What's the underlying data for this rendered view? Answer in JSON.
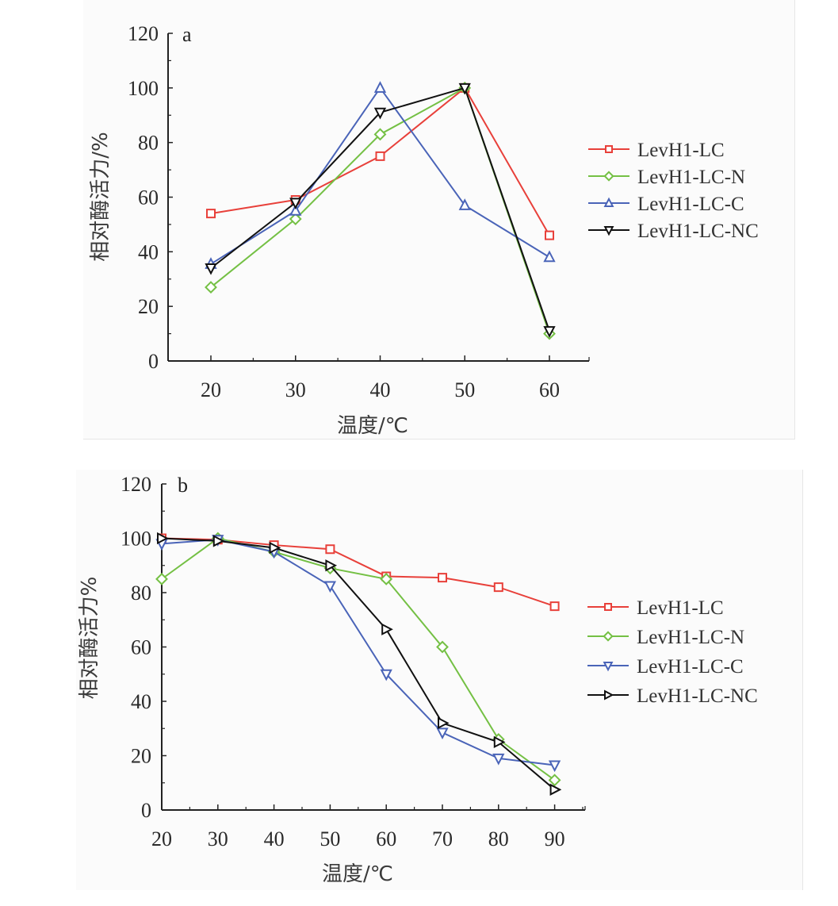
{
  "chart_data": [
    {
      "id": "a",
      "type": "line",
      "panel_label": "a",
      "title": "",
      "xlabel": "温度/℃",
      "ylabel": "相对酶活力/%",
      "x": [
        20,
        30,
        40,
        50,
        60
      ],
      "xticks": [
        20,
        30,
        40,
        50,
        60
      ],
      "xlim": [
        15,
        62
      ],
      "ylim": [
        0,
        120
      ],
      "yticks": [
        0,
        20,
        40,
        60,
        80,
        100,
        120
      ],
      "grid": false,
      "legend_position": "right",
      "series": [
        {
          "name": "LevH1-LC",
          "color": "#e8403a",
          "marker": "square",
          "values": [
            54,
            59,
            75,
            100,
            46
          ]
        },
        {
          "name": "LevH1-LC-N",
          "color": "#74c044",
          "marker": "diamond",
          "values": [
            27,
            52,
            83,
            100,
            10
          ]
        },
        {
          "name": "LevH1-LC-C",
          "color": "#4a64b8",
          "marker": "triangle-up",
          "values": [
            35.5,
            55,
            100,
            57,
            38
          ]
        },
        {
          "name": "LevH1-LC-NC",
          "color": "#111111",
          "marker": "triangle-down",
          "values": [
            34,
            58,
            91,
            100,
            11
          ]
        }
      ]
    },
    {
      "id": "b",
      "type": "line",
      "panel_label": "b",
      "title": "",
      "xlabel": "温度/℃",
      "ylabel": "相对酶活力%",
      "x": [
        20,
        30,
        40,
        50,
        60,
        70,
        80,
        90
      ],
      "xticks": [
        20,
        30,
        40,
        50,
        60,
        70,
        80,
        90
      ],
      "xlim": [
        20,
        95
      ],
      "ylim": [
        0,
        120
      ],
      "yticks": [
        0,
        20,
        40,
        60,
        80,
        100,
        120
      ],
      "grid": false,
      "legend_position": "right",
      "series": [
        {
          "name": "LevH1-LC",
          "color": "#e8403a",
          "marker": "square",
          "values": [
            100,
            99.5,
            97.5,
            96,
            86,
            85.5,
            82,
            75
          ]
        },
        {
          "name": "LevH1-LC-N",
          "color": "#74c044",
          "marker": "diamond",
          "values": [
            85,
            100,
            95,
            89,
            85,
            60,
            26,
            11
          ]
        },
        {
          "name": "LevH1-LC-C",
          "color": "#4a64b8",
          "marker": "triangle-down",
          "values": [
            98,
            99.5,
            95,
            82.5,
            50,
            28.5,
            19,
            16.5
          ]
        },
        {
          "name": "LevH1-LC-NC",
          "color": "#111111",
          "marker": "triangle-right",
          "values": [
            100,
            99,
            96.5,
            90,
            66.5,
            32,
            25,
            7.5
          ]
        }
      ]
    }
  ]
}
